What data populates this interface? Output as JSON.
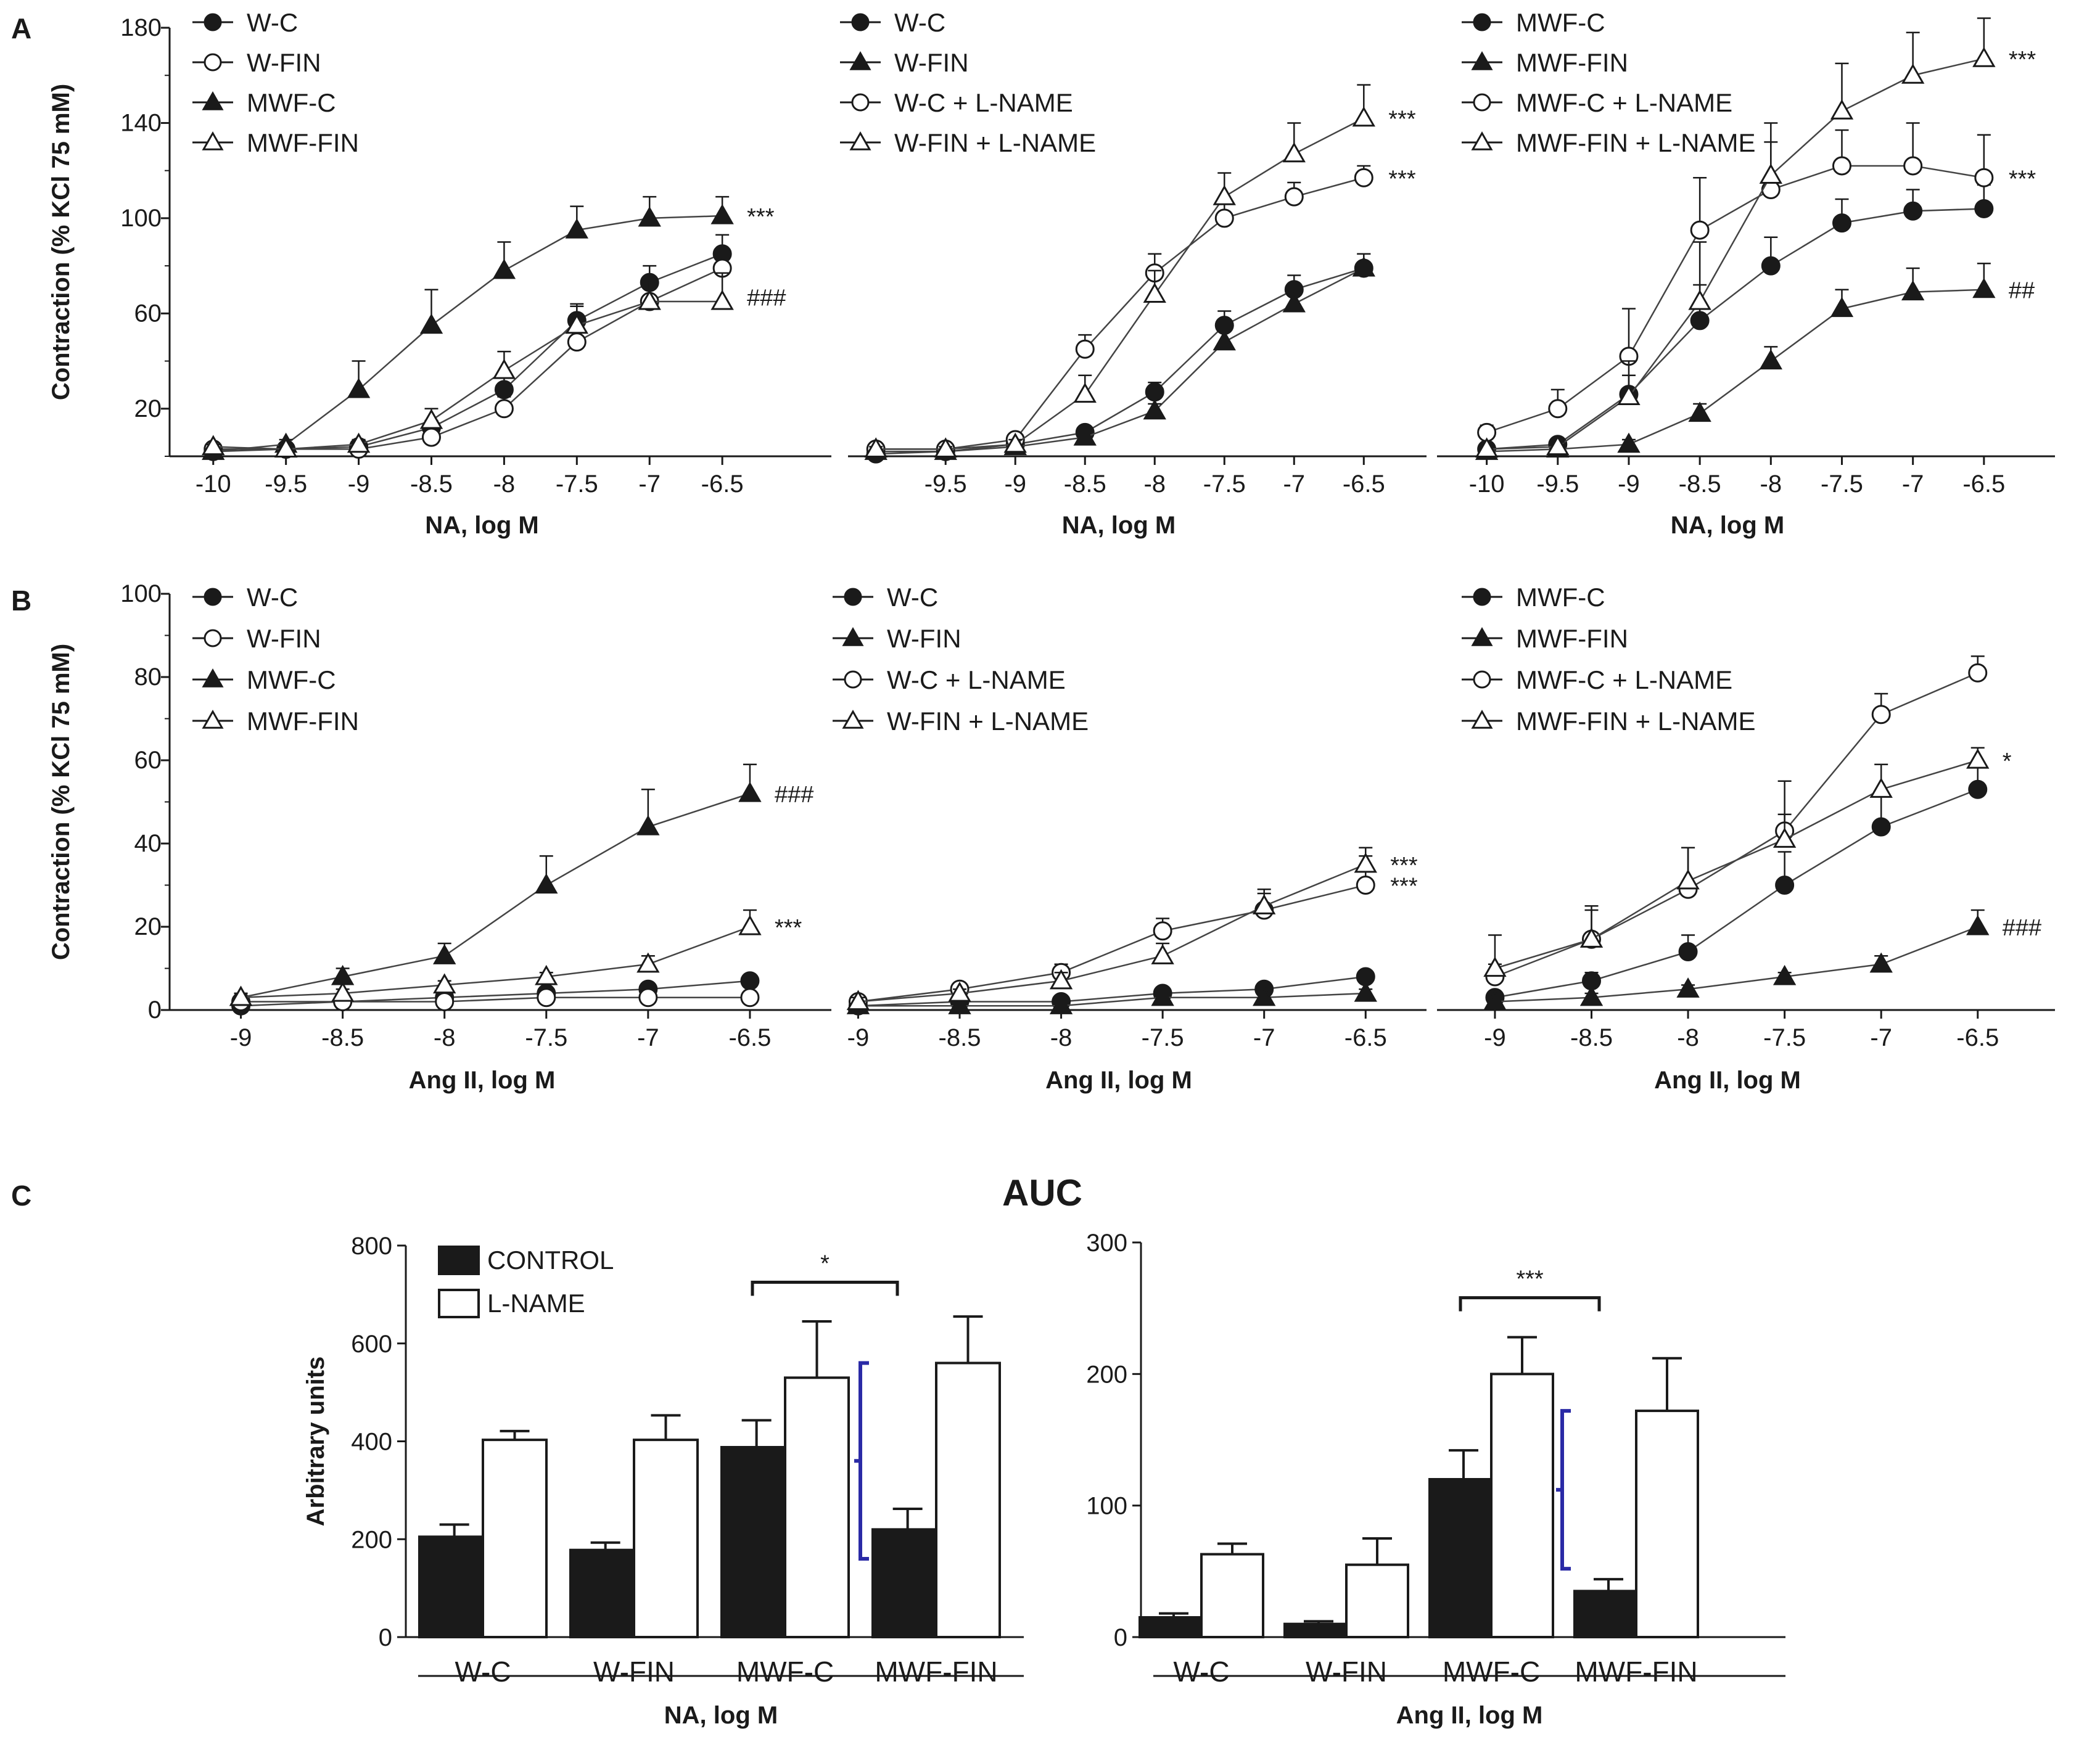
{
  "figure": {
    "title": "AUC"
  },
  "panel_letters": [
    "A",
    "B",
    "C"
  ],
  "colors": {
    "ink": "#1a1a1a",
    "open": "#ffffff",
    "bracket_blue": "#2a2aa6"
  },
  "chart_data": [
    {
      "id": "A1",
      "type": "line",
      "xlabel": "NA, log M",
      "ylabel": "Contraction (% KCl 75 mM)",
      "xlim": [
        -10.3,
        -5.75
      ],
      "ylim": [
        0,
        180
      ],
      "xticks": [
        -10,
        -9.5,
        -9,
        -8.5,
        -8,
        -7.5,
        -7,
        -6.5
      ],
      "yticks": [
        20,
        60,
        100,
        140,
        180
      ],
      "series": [
        {
          "name": "W-C",
          "marker": "circle",
          "fill": "filled",
          "x": [
            -10,
            -9.5,
            -9,
            -8.5,
            -8,
            -7.5,
            -7,
            -6.5
          ],
          "y": [
            2,
            3,
            4,
            12,
            28,
            57,
            73,
            85
          ],
          "err": [
            1,
            1,
            1,
            3,
            6,
            7,
            7,
            8
          ]
        },
        {
          "name": "W-FIN",
          "marker": "circle",
          "fill": "open",
          "x": [
            -10,
            -9.5,
            -9,
            -8.5,
            -8,
            -7.5,
            -7,
            -6.5
          ],
          "y": [
            3,
            3,
            3,
            8,
            20,
            48,
            65,
            79
          ],
          "err": [
            1,
            1,
            1,
            2,
            5,
            6,
            8,
            8
          ]
        },
        {
          "name": "MWF-C",
          "marker": "triangle",
          "fill": "filled",
          "x": [
            -10,
            -9.5,
            -9,
            -8.5,
            -8,
            -7.5,
            -7,
            -6.5
          ],
          "y": [
            2,
            5,
            28,
            55,
            78,
            95,
            100,
            101
          ],
          "err": [
            1,
            2,
            12,
            15,
            12,
            10,
            9,
            8
          ]
        },
        {
          "name": "MWF-FIN",
          "marker": "triangle",
          "fill": "open",
          "x": [
            -10,
            -9.5,
            -9,
            -8.5,
            -8,
            -7.5,
            -7,
            -6.5
          ],
          "y": [
            4,
            3,
            5,
            15,
            36,
            55,
            65,
            65
          ],
          "err": [
            1,
            1,
            2,
            5,
            8,
            8,
            9,
            12
          ]
        }
      ],
      "annotations": [
        {
          "text": "***",
          "at_x": -6.5,
          "at_y": 101
        },
        {
          "text": "###",
          "at_x": -6.5,
          "at_y": 67
        }
      ]
    },
    {
      "id": "A2",
      "type": "line",
      "xlabel": "NA, log M",
      "ylabel": "",
      "xlim": [
        -10.2,
        -6.05
      ],
      "ylim": [
        0,
        180
      ],
      "xticks": [
        -9.5,
        -9,
        -8.5,
        -8,
        -7.5,
        -7,
        -6.5
      ],
      "series": [
        {
          "name": "W-C",
          "marker": "circle",
          "fill": "filled",
          "x": [
            -10,
            -9.5,
            -9,
            -8.5,
            -8,
            -7.5,
            -7,
            -6.5
          ],
          "y": [
            1,
            2,
            5,
            10,
            27,
            55,
            70,
            79
          ],
          "err": [
            1,
            1,
            1,
            2,
            4,
            6,
            6,
            6
          ]
        },
        {
          "name": "W-FIN",
          "marker": "triangle",
          "fill": "filled",
          "x": [
            -10,
            -9.5,
            -9,
            -8.5,
            -8,
            -7.5,
            -7,
            -6.5
          ],
          "y": [
            2,
            2,
            4,
            8,
            19,
            48,
            64,
            79
          ],
          "err": [
            1,
            1,
            1,
            2,
            3,
            5,
            6,
            6
          ]
        },
        {
          "name": "W-C + L-NAME",
          "marker": "circle",
          "fill": "open",
          "x": [
            -10,
            -9.5,
            -9,
            -8.5,
            -8,
            -7.5,
            -7,
            -6.5
          ],
          "y": [
            3,
            3,
            7,
            45,
            77,
            100,
            109,
            117
          ],
          "err": [
            1,
            1,
            2,
            6,
            8,
            6,
            6,
            5
          ]
        },
        {
          "name": "W-FIN + L-NAME",
          "marker": "triangle",
          "fill": "open",
          "x": [
            -10,
            -9.5,
            -9,
            -8.5,
            -8,
            -7.5,
            -7,
            -6.5
          ],
          "y": [
            3,
            3,
            5,
            26,
            68,
            109,
            127,
            142
          ],
          "err": [
            1,
            1,
            2,
            8,
            10,
            10,
            13,
            14
          ]
        }
      ],
      "annotations": [
        {
          "text": "***",
          "at_x": -6.5,
          "at_y": 142
        },
        {
          "text": "***",
          "at_x": -6.5,
          "at_y": 117
        }
      ]
    },
    {
      "id": "A3",
      "type": "line",
      "xlabel": "NA, log M",
      "ylabel": "",
      "xlim": [
        -10.35,
        -6.0
      ],
      "ylim": [
        0,
        180
      ],
      "xticks": [
        -10,
        -9.5,
        -9,
        -8.5,
        -8,
        -7.5,
        -7,
        -6.5
      ],
      "series": [
        {
          "name": "MWF-C",
          "marker": "circle",
          "fill": "filled",
          "x": [
            -10,
            -9.5,
            -9,
            -8.5,
            -8,
            -7.5,
            -7,
            -6.5
          ],
          "y": [
            3,
            5,
            26,
            57,
            80,
            98,
            103,
            104
          ],
          "err": [
            1,
            2,
            8,
            15,
            12,
            10,
            9,
            10
          ]
        },
        {
          "name": "MWF-FIN",
          "marker": "triangle",
          "fill": "filled",
          "x": [
            -10,
            -9.5,
            -9,
            -8.5,
            -8,
            -7.5,
            -7,
            -6.5
          ],
          "y": [
            2,
            3,
            5,
            18,
            40,
            62,
            69,
            70
          ],
          "err": [
            1,
            1,
            2,
            4,
            6,
            8,
            10,
            11
          ]
        },
        {
          "name": "MWF-C + L-NAME",
          "marker": "circle",
          "fill": "open",
          "x": [
            -10,
            -9.5,
            -9,
            -8.5,
            -8,
            -7.5,
            -7,
            -6.5
          ],
          "y": [
            10,
            20,
            42,
            95,
            112,
            122,
            122,
            117
          ],
          "err": [
            3,
            8,
            20,
            22,
            20,
            15,
            18,
            18
          ]
        },
        {
          "name": "MWF-FIN + L-NAME",
          "marker": "triangle",
          "fill": "open",
          "x": [
            -10,
            -9.5,
            -9,
            -8.5,
            -8,
            -7.5,
            -7,
            -6.5
          ],
          "y": [
            3,
            4,
            25,
            65,
            118,
            145,
            160,
            167
          ],
          "err": [
            1,
            2,
            15,
            25,
            22,
            20,
            18,
            17
          ]
        }
      ],
      "annotations": [
        {
          "text": "***",
          "at_x": -6.5,
          "at_y": 167
        },
        {
          "text": "***",
          "at_x": -6.5,
          "at_y": 117
        },
        {
          "text": "##",
          "at_x": -6.5,
          "at_y": 70
        }
      ]
    },
    {
      "id": "B1",
      "type": "line",
      "xlabel": "Ang II, log M",
      "ylabel": "Contraction (% KCl 75 mM)",
      "xlim": [
        -9.35,
        -6.1
      ],
      "ylim": [
        0,
        100
      ],
      "xticks": [
        -9,
        -8.5,
        -8,
        -7.5,
        -7,
        -6.5
      ],
      "yticks": [
        0,
        20,
        40,
        60,
        80,
        100
      ],
      "series": [
        {
          "name": "W-C",
          "marker": "circle",
          "fill": "filled",
          "x": [
            -9,
            -8.5,
            -8,
            -7.5,
            -7,
            -6.5
          ],
          "y": [
            1,
            2,
            3,
            4,
            5,
            7
          ],
          "err": [
            1,
            1,
            1,
            1,
            1,
            1
          ]
        },
        {
          "name": "W-FIN",
          "marker": "circle",
          "fill": "open",
          "x": [
            -9,
            -8.5,
            -8,
            -7.5,
            -7,
            -6.5
          ],
          "y": [
            2,
            2,
            2,
            3,
            3,
            3
          ],
          "err": [
            1,
            1,
            1,
            1,
            1,
            1
          ]
        },
        {
          "name": "MWF-C",
          "marker": "triangle",
          "fill": "filled",
          "x": [
            -9,
            -8.5,
            -8,
            -7.5,
            -7,
            -6.5
          ],
          "y": [
            3,
            8,
            13,
            30,
            44,
            52
          ],
          "err": [
            1,
            2,
            3,
            7,
            9,
            7
          ]
        },
        {
          "name": "MWF-FIN",
          "marker": "triangle",
          "fill": "open",
          "x": [
            -9,
            -8.5,
            -8,
            -7.5,
            -7,
            -6.5
          ],
          "y": [
            3,
            4,
            6,
            8,
            11,
            20
          ],
          "err": [
            1,
            1,
            1,
            1,
            2,
            4
          ]
        }
      ],
      "annotations": [
        {
          "text": "###",
          "at_x": -6.5,
          "at_y": 52
        },
        {
          "text": "***",
          "at_x": -6.5,
          "at_y": 20
        }
      ]
    },
    {
      "id": "B2",
      "type": "line",
      "xlabel": "Ang II, log M",
      "ylabel": "",
      "xlim": [
        -9.05,
        -6.2
      ],
      "ylim": [
        0,
        100
      ],
      "xticks": [
        -9,
        -8.5,
        -8,
        -7.5,
        -7,
        -6.5
      ],
      "series": [
        {
          "name": "W-C",
          "marker": "circle",
          "fill": "filled",
          "x": [
            -9,
            -8.5,
            -8,
            -7.5,
            -7,
            -6.5
          ],
          "y": [
            1,
            2,
            2,
            4,
            5,
            8
          ],
          "err": [
            1,
            1,
            1,
            1,
            1,
            1
          ]
        },
        {
          "name": "W-FIN",
          "marker": "triangle",
          "fill": "filled",
          "x": [
            -9,
            -8.5,
            -8,
            -7.5,
            -7,
            -6.5
          ],
          "y": [
            1,
            1,
            1,
            3,
            3,
            4
          ],
          "err": [
            1,
            1,
            1,
            1,
            1,
            1
          ]
        },
        {
          "name": "W-C + L-NAME",
          "marker": "circle",
          "fill": "open",
          "x": [
            -9,
            -8.5,
            -8,
            -7.5,
            -7,
            -6.5
          ],
          "y": [
            2,
            5,
            9,
            19,
            24,
            30
          ],
          "err": [
            1,
            1,
            2,
            3,
            4,
            7
          ]
        },
        {
          "name": "W-FIN + L-NAME",
          "marker": "triangle",
          "fill": "open",
          "x": [
            -9,
            -8.5,
            -8,
            -7.5,
            -7,
            -6.5
          ],
          "y": [
            2,
            4,
            7,
            13,
            25,
            35
          ],
          "err": [
            1,
            1,
            2,
            3,
            4,
            4
          ]
        }
      ],
      "annotations": [
        {
          "text": "***",
          "at_x": -6.5,
          "at_y": 35
        },
        {
          "text": "***",
          "at_x": -6.5,
          "at_y": 30
        }
      ]
    },
    {
      "id": "B3",
      "type": "line",
      "xlabel": "Ang II, log M",
      "ylabel": "",
      "xlim": [
        -9.3,
        -6.1
      ],
      "ylim": [
        0,
        100
      ],
      "xticks": [
        -9,
        -8.5,
        -8,
        -7.5,
        -7,
        -6.5
      ],
      "series": [
        {
          "name": "MWF-C",
          "marker": "circle",
          "fill": "filled",
          "x": [
            -9,
            -8.5,
            -8,
            -7.5,
            -7,
            -6.5
          ],
          "y": [
            3,
            7,
            14,
            30,
            44,
            53
          ],
          "err": [
            1,
            2,
            4,
            8,
            8,
            6
          ]
        },
        {
          "name": "MWF-FIN",
          "marker": "triangle",
          "fill": "filled",
          "x": [
            -9,
            -8.5,
            -8,
            -7.5,
            -7,
            -6.5
          ],
          "y": [
            2,
            3,
            5,
            8,
            11,
            20
          ],
          "err": [
            1,
            1,
            1,
            1,
            2,
            4
          ]
        },
        {
          "name": "MWF-C + L-NAME",
          "marker": "circle",
          "fill": "open",
          "x": [
            -9,
            -8.5,
            -8,
            -7.5,
            -7,
            -6.5
          ],
          "y": [
            8,
            17,
            29,
            43,
            71,
            81
          ],
          "err": [
            3,
            8,
            10,
            12,
            5,
            4
          ]
        },
        {
          "name": "MWF-FIN + L-NAME",
          "marker": "triangle",
          "fill": "open",
          "x": [
            -9,
            -8.5,
            -8,
            -7.5,
            -7,
            -6.5
          ],
          "y": [
            10,
            17,
            31,
            41,
            53,
            60
          ],
          "err": [
            8,
            7,
            8,
            6,
            6,
            3
          ]
        }
      ],
      "annotations": [
        {
          "text": "*",
          "at_x": -6.5,
          "at_y": 60
        },
        {
          "text": "###",
          "at_x": -6.5,
          "at_y": 20
        }
      ]
    },
    {
      "id": "C1",
      "type": "bar",
      "title": "AUC",
      "xlabel": "NA, log M",
      "ylabel": "Arbitrary units",
      "categories": [
        "W-C",
        "W-FIN",
        "MWF-C",
        "MWF-FIN"
      ],
      "ylim": [
        0,
        800
      ],
      "yticks": [
        0,
        200,
        400,
        600,
        800
      ],
      "series": [
        {
          "name": "CONTROL",
          "values": [
            205,
            178,
            388,
            220
          ],
          "err": [
            25,
            15,
            55,
            42
          ]
        },
        {
          "name": "L-NAME",
          "values": [
            403,
            403,
            530,
            560
          ],
          "err": [
            18,
            50,
            115,
            95
          ]
        }
      ],
      "brackets": [
        {
          "text": "*",
          "from": "MWF-C",
          "to": "MWF-FIN",
          "at_y": 725
        }
      ],
      "blue_marks": [
        {
          "from_y": 160,
          "to_y": 560,
          "near": "MWF-FIN"
        }
      ]
    },
    {
      "id": "C2",
      "type": "bar",
      "xlabel": "Ang II, log M",
      "ylabel": "",
      "categories": [
        "W-C",
        "W-FIN",
        "MWF-C",
        "MWF-FIN"
      ],
      "ylim": [
        0,
        300
      ],
      "yticks": [
        0,
        100,
        200,
        300
      ],
      "series": [
        {
          "name": "CONTROL",
          "values": [
            15,
            10,
            120,
            35
          ],
          "err": [
            3,
            2,
            22,
            9
          ]
        },
        {
          "name": "L-NAME",
          "values": [
            63,
            55,
            200,
            172
          ],
          "err": [
            8,
            20,
            28,
            40
          ]
        }
      ],
      "brackets": [
        {
          "text": "***",
          "from": "MWF-C",
          "to": "MWF-FIN",
          "at_y": 258
        }
      ],
      "blue_marks": [
        {
          "from_y": 52,
          "to_y": 172,
          "near": "MWF-FIN"
        }
      ]
    }
  ]
}
